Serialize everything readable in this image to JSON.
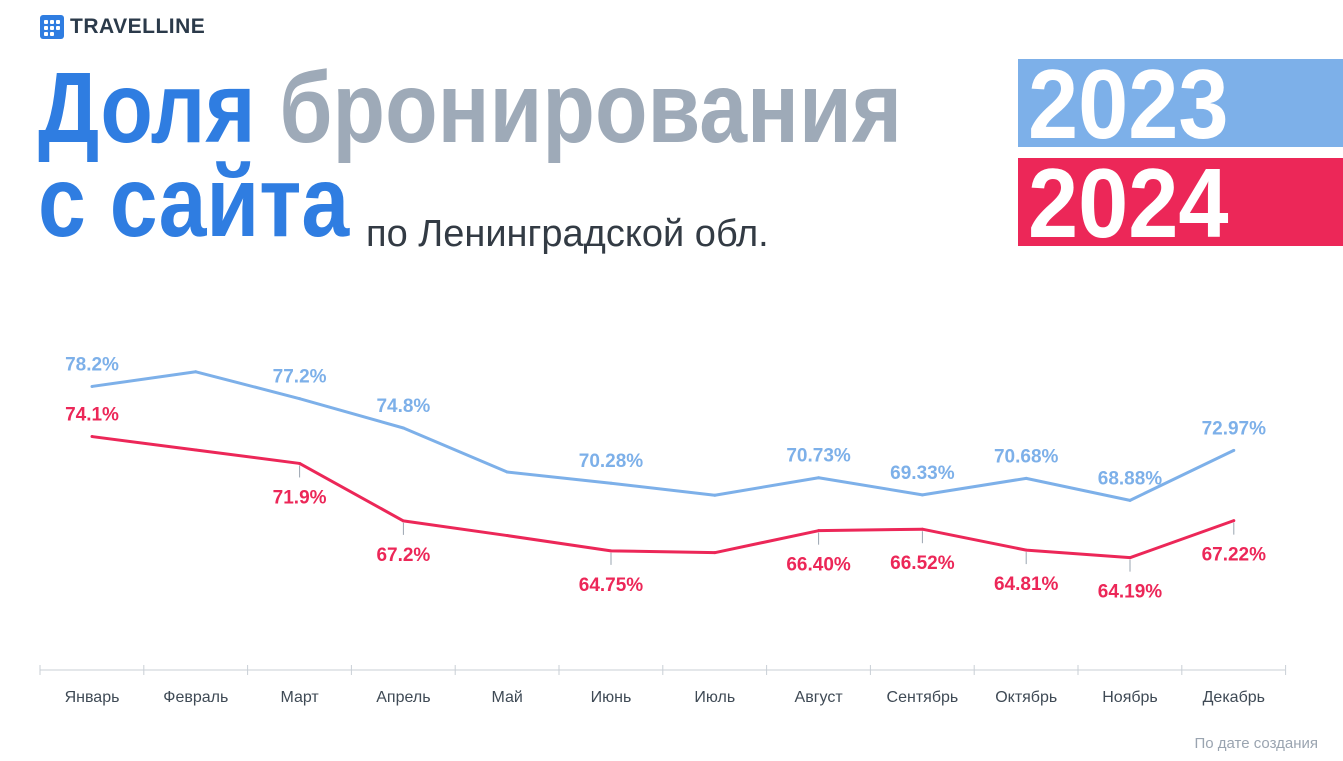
{
  "brand": {
    "name": "TRAVELLINE",
    "logo_icon": "grid-dots-icon"
  },
  "title": {
    "line1_blue": "Доля",
    "line1_grey": "бронирования",
    "line2_blue": "с сайта",
    "subtitle": "по Ленинградской обл."
  },
  "legend": [
    {
      "label": "2023",
      "color": "#7db0e9"
    },
    {
      "label": "2024",
      "color": "#ec2758"
    }
  ],
  "footnote": "По дате создания",
  "colors": {
    "blue": "#2f7de1",
    "grey": "#9eaab8",
    "series_2023": "#7db0e9",
    "series_2024": "#ec2758"
  },
  "chart_data": {
    "type": "line",
    "categories": [
      "Январь",
      "Февраль",
      "Март",
      "Апрель",
      "Май",
      "Июнь",
      "Июль",
      "Август",
      "Сентябрь",
      "Октябрь",
      "Ноябрь",
      "Декабрь"
    ],
    "series": [
      {
        "name": "2023",
        "color": "#7db0e9",
        "values": [
          78.2,
          79.4,
          77.2,
          74.8,
          71.2,
          70.28,
          69.3,
          70.73,
          69.33,
          70.68,
          68.88,
          72.97
        ],
        "labels": [
          "78.2%",
          null,
          "77.2%",
          "74.8%",
          null,
          "70.28%",
          null,
          "70.73%",
          "69.33%",
          "70.68%",
          "68.88%",
          "72.97%"
        ]
      },
      {
        "name": "2024",
        "color": "#ec2758",
        "values": [
          74.1,
          73.0,
          71.9,
          67.2,
          66.0,
          64.75,
          64.6,
          66.4,
          66.52,
          64.81,
          64.19,
          67.22
        ],
        "labels": [
          "74.1%",
          null,
          "71.9%",
          "67.2%",
          null,
          "64.75%",
          null,
          "66.40%",
          "66.52%",
          "64.81%",
          "64.19%",
          "67.22%"
        ]
      }
    ],
    "ylim": [
      55,
      82
    ],
    "grid": false,
    "legend_position": "top-right"
  }
}
